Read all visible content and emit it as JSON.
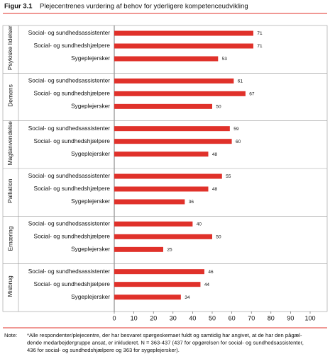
{
  "chart_data": {
    "type": "bar",
    "figure_label": "Figur 3.1",
    "title": "Plejecentrenes vurdering af behov for yderligere kompetenceudvikling",
    "color": "#e0312a",
    "xlim": [
      0,
      100
    ],
    "xticks": [
      0,
      10,
      20,
      30,
      40,
      50,
      60,
      70,
      80,
      90,
      100
    ],
    "groups": [
      {
        "name": "Psykiske lidelser",
        "categories": [
          "Social- og sundhedsassistenter",
          "Social- og sundhedshjælpere",
          "Sygeplejersker"
        ],
        "values": [
          71,
          71,
          53
        ]
      },
      {
        "name": "Demens",
        "categories": [
          "Social- og sundhedsassistenter",
          "Social- og sundhedshjælpere",
          "Sygeplejersker"
        ],
        "values": [
          61,
          67,
          50
        ]
      },
      {
        "name": "Magtanvendelse",
        "categories": [
          "Social- og sundhedsassistenter",
          "Social- og sundhedshjælpere",
          "Sygeplejersker"
        ],
        "values": [
          59,
          60,
          48
        ]
      },
      {
        "name": "Palliation",
        "categories": [
          "Social- og sundhedsassistenter",
          "Social- og sundhedshjælpere",
          "Sygeplejersker"
        ],
        "values": [
          55,
          48,
          36
        ]
      },
      {
        "name": "Ernæring",
        "categories": [
          "Social- og sundhedsassistenter",
          "Social- og sundhedshjælpere",
          "Sygeplejersker"
        ],
        "values": [
          40,
          50,
          25
        ]
      },
      {
        "name": "Misbrug",
        "categories": [
          "Social- og sundhedsassistenter",
          "Social- og sundhedshjælpere",
          "Sygeplejersker"
        ],
        "values": [
          46,
          44,
          34
        ]
      }
    ],
    "note": {
      "label": "Note:",
      "lines": [
        "*Alle respondenter/plejecentre, der har besvaret spørgeskemaet fuldt og samtidig har angivet, at de har den pågæl-",
        "dende medarbejdergruppe ansat, er inkluderet. N = 363-437 (437 for opgørelsen for social- og sundhedsassistenter,",
        "436 for social- og sundhedshjælpere og 363 for sygeplejersker)."
      ]
    }
  }
}
